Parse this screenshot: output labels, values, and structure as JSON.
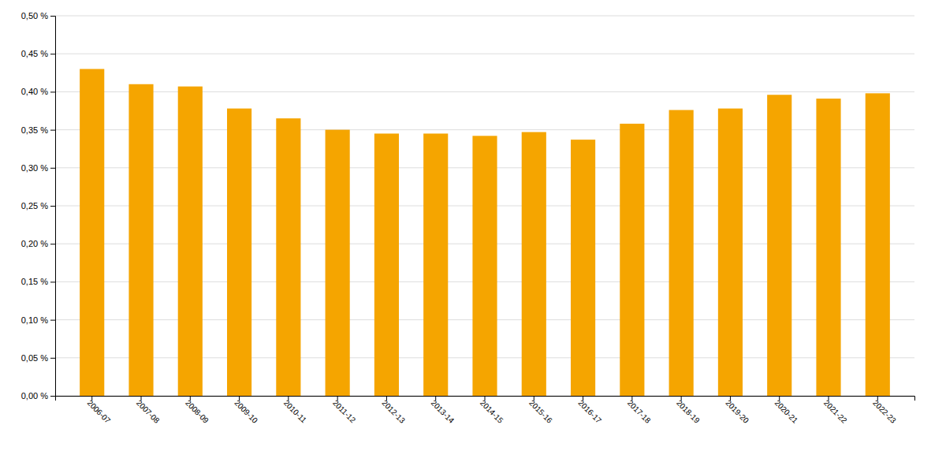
{
  "chart_data": {
    "type": "bar",
    "categories": [
      "2006-07",
      "2007-08",
      "2008-09",
      "2009-10",
      "2010-11",
      "2011-12",
      "2012-13",
      "2013-14",
      "2014-15",
      "2015-16",
      "2016-17",
      "2017-18",
      "2018-19",
      "2019-20",
      "2020-21",
      "2021-22",
      "2022-23"
    ],
    "values": [
      0.43,
      0.41,
      0.407,
      0.378,
      0.365,
      0.35,
      0.345,
      0.345,
      0.342,
      0.347,
      0.337,
      0.358,
      0.376,
      0.378,
      0.396,
      0.391,
      0.398
    ],
    "color": "#F5A500",
    "ylim": [
      0.0,
      0.5
    ],
    "yticks": [
      {
        "value": 0.0,
        "label": "0,00 %"
      },
      {
        "value": 0.05,
        "label": "0,05 %"
      },
      {
        "value": 0.1,
        "label": "0,10 %"
      },
      {
        "value": 0.15,
        "label": "0,15 %"
      },
      {
        "value": 0.2,
        "label": "0,20 %"
      },
      {
        "value": 0.25,
        "label": "0,25 %"
      },
      {
        "value": 0.3,
        "label": "0,30 %"
      },
      {
        "value": 0.35,
        "label": "0,35 %"
      },
      {
        "value": 0.4,
        "label": "0,40 %"
      },
      {
        "value": 0.45,
        "label": "0,45 %"
      },
      {
        "value": 0.5,
        "label": "0,50 %"
      }
    ],
    "grid": true
  }
}
